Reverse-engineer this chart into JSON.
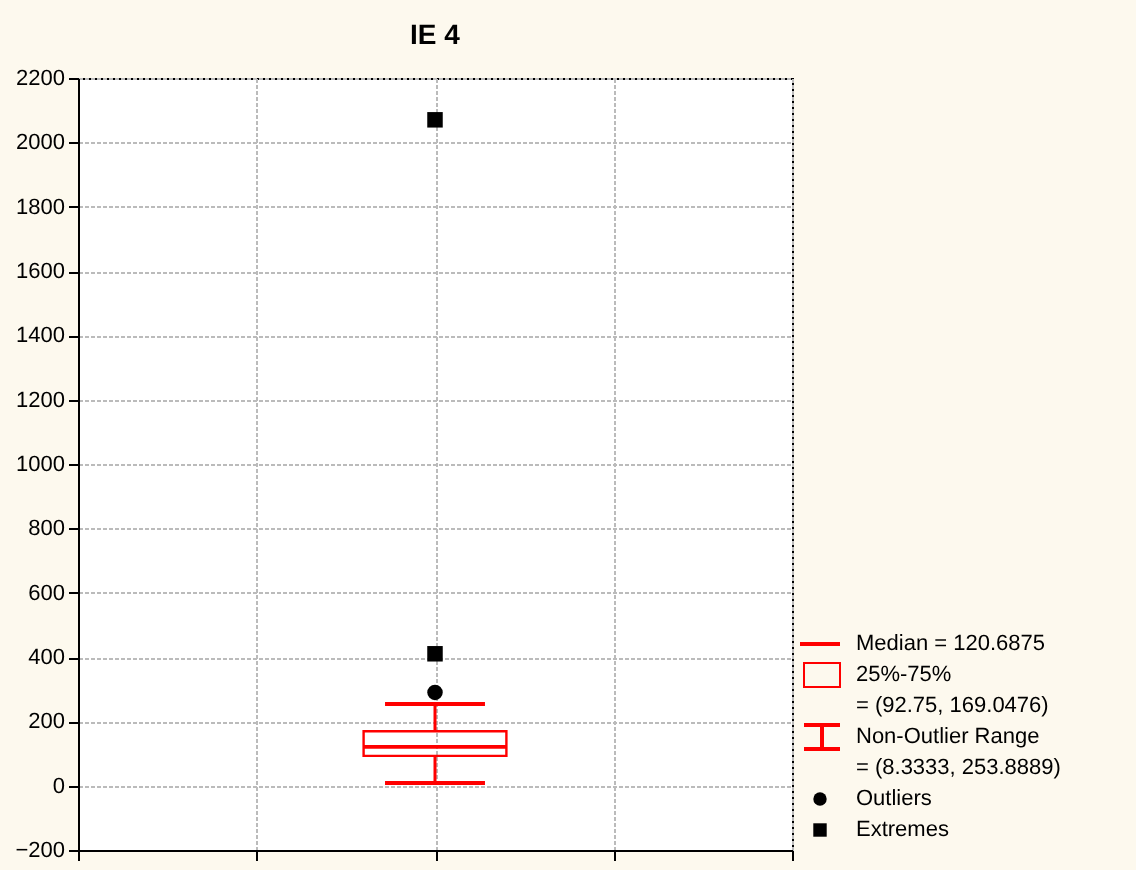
{
  "chart_data": {
    "type": "box",
    "title": "IE 4",
    "categories": [
      null
    ],
    "ylim": [
      -200,
      2200
    ],
    "yticks": [
      -200,
      0,
      200,
      400,
      600,
      800,
      1000,
      1200,
      1400,
      1600,
      1800,
      2000,
      2200
    ],
    "grid": true,
    "legend": "right",
    "tick_labels": "y",
    "annotations": [
      "Median = 120.6875",
      "25%-75%",
      "= (92.75, 169.0476)",
      "Non-Outlier Range",
      "= (8.3333, 253.8889)"
    ],
    "series": [
      {
        "type": "box",
        "color": "#ff0000",
        "boxes": [
          {
            "low": 8.3333,
            "q1": 92.75,
            "median": 120.6875,
            "q3": 169.0476,
            "high": 253.8889
          }
        ]
      },
      {
        "name": "Outliers",
        "type": "scatter",
        "marker": "circle",
        "color": "#000000",
        "x": [
          null
        ],
        "values": [
          290
        ]
      },
      {
        "name": "Extremes",
        "type": "scatter",
        "marker": "square",
        "color": "#000000",
        "x": [
          null,
          null
        ],
        "values": [
          410,
          2070
        ]
      }
    ]
  }
}
